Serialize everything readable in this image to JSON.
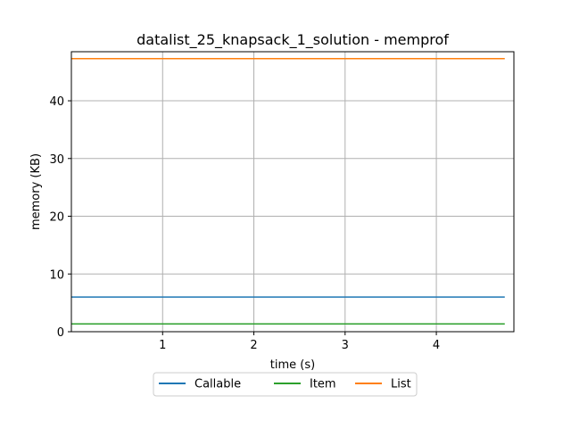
{
  "chart_data": {
    "type": "line",
    "title": "datalist_25_knapsack_1_solution - memprof",
    "xlabel": "time (s)",
    "ylabel": "memory (KB)",
    "xlim": [
      0.0,
      4.85
    ],
    "ylim": [
      0,
      48.5
    ],
    "xticks": [
      1,
      2,
      3,
      4
    ],
    "yticks": [
      0,
      10,
      20,
      30,
      40
    ],
    "grid": true,
    "legend_position": "bottom-center",
    "series": [
      {
        "name": "Callable",
        "color": "#1f77b4",
        "x": [
          0.0,
          4.75
        ],
        "values": [
          6.0,
          6.0
        ]
      },
      {
        "name": "Item",
        "color": "#2ca02c",
        "x": [
          0.0,
          4.75
        ],
        "values": [
          1.35,
          1.35
        ]
      },
      {
        "name": "List",
        "color": "#ff7f0e",
        "x": [
          0.0,
          4.75
        ],
        "values": [
          47.3,
          47.3
        ]
      }
    ]
  }
}
